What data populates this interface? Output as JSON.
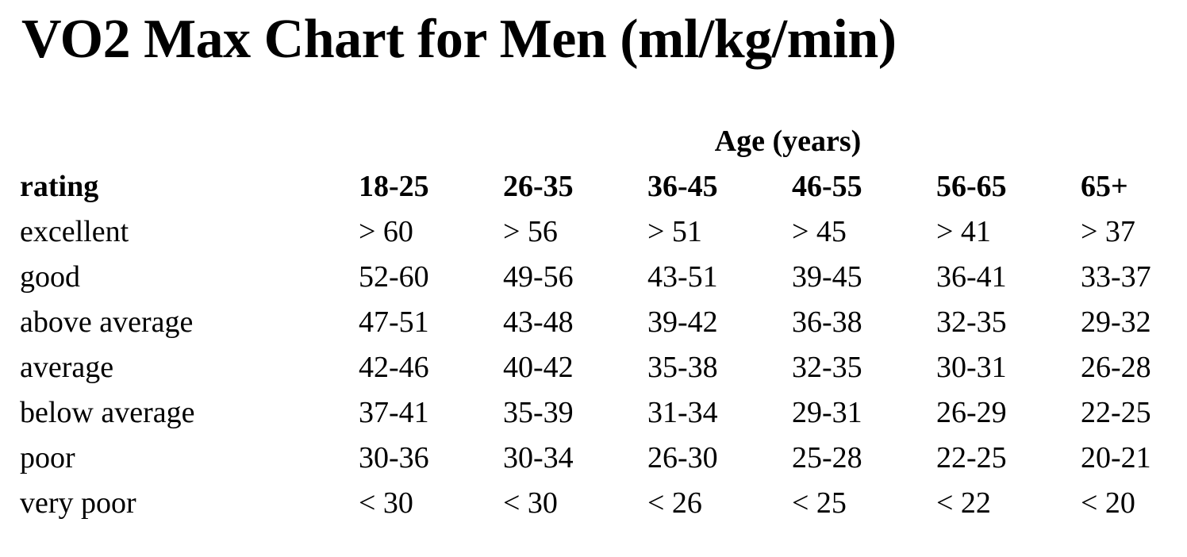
{
  "page": {
    "title": "VO2 Max Chart for Men (ml/kg/min)"
  },
  "colors": {
    "text": "#000000",
    "background": "#ffffff"
  },
  "chart_data": {
    "type": "table",
    "title": "VO2 Max Chart for Men (ml/kg/min)",
    "unit": "ml/kg/min",
    "group_header": "Age (years)",
    "columns": [
      "rating",
      "18-25",
      "26-35",
      "36-45",
      "46-55",
      "56-65",
      "65+"
    ],
    "rows": [
      {
        "rating": "excellent",
        "values": [
          "> 60",
          "> 56",
          "> 51",
          "> 45",
          "> 41",
          "> 37"
        ]
      },
      {
        "rating": "good",
        "values": [
          "52-60",
          "49-56",
          "43-51",
          "39-45",
          "36-41",
          "33-37"
        ]
      },
      {
        "rating": "above average",
        "values": [
          "47-51",
          "43-48",
          "39-42",
          "36-38",
          "32-35",
          "29-32"
        ]
      },
      {
        "rating": "average",
        "values": [
          "42-46",
          "40-42",
          "35-38",
          "32-35",
          "30-31",
          "26-28"
        ]
      },
      {
        "rating": "below average",
        "values": [
          "37-41",
          "35-39",
          "31-34",
          "29-31",
          "26-29",
          "22-25"
        ]
      },
      {
        "rating": "poor",
        "values": [
          "30-36",
          "30-34",
          "26-30",
          "25-28",
          "22-25",
          "20-21"
        ]
      },
      {
        "rating": "very poor",
        "values": [
          "< 30",
          "< 30",
          "< 26",
          "< 25",
          "< 22",
          "< 20"
        ]
      }
    ]
  }
}
